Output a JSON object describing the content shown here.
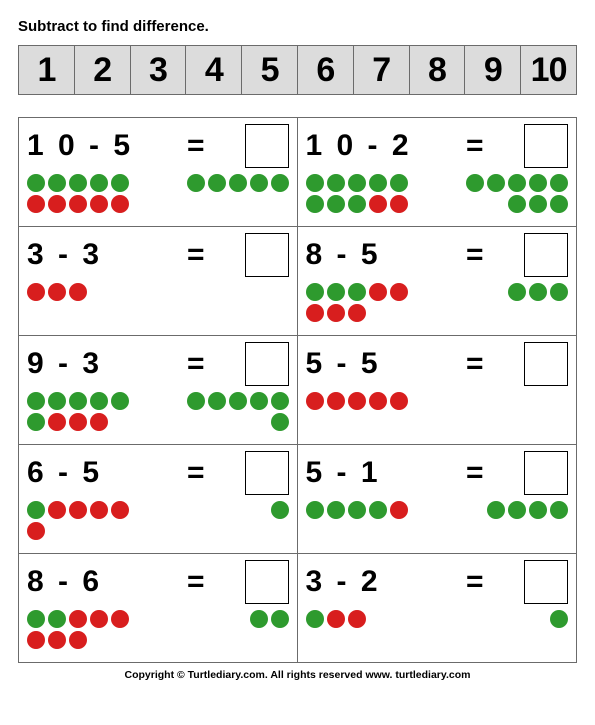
{
  "instruction": "Subtract to find difference.",
  "number_strip": [
    "1",
    "2",
    "3",
    "4",
    "5",
    "6",
    "7",
    "8",
    "9",
    "10"
  ],
  "colors": {
    "green": "#2e9a2e",
    "red": "#d81e1e"
  },
  "problems": [
    {
      "expr": "1 0 - 5",
      "equals": "=",
      "left_dots": [
        [
          "g",
          "g",
          "g",
          "g",
          "g"
        ],
        [
          "r",
          "r",
          "r",
          "r",
          "r"
        ]
      ],
      "right_dots": [
        [
          "g",
          "g",
          "g",
          "g",
          "g"
        ]
      ]
    },
    {
      "expr": "1 0 - 2",
      "equals": "=",
      "left_dots": [
        [
          "g",
          "g",
          "g",
          "g",
          "g"
        ],
        [
          "g",
          "g",
          "g",
          "r",
          "r"
        ]
      ],
      "right_dots": [
        [
          "g",
          "g",
          "g",
          "g",
          "g"
        ],
        [
          "g",
          "g",
          "g"
        ]
      ]
    },
    {
      "expr": "3 - 3",
      "equals": "=",
      "left_dots": [
        [
          "r",
          "r",
          "r"
        ]
      ],
      "right_dots": []
    },
    {
      "expr": "8 - 5",
      "equals": "=",
      "left_dots": [
        [
          "g",
          "g",
          "g",
          "r",
          "r"
        ],
        [
          "r",
          "r",
          "r"
        ]
      ],
      "right_dots": [
        [
          "g",
          "g",
          "g"
        ]
      ]
    },
    {
      "expr": "9 - 3",
      "equals": "=",
      "left_dots": [
        [
          "g",
          "g",
          "g",
          "g",
          "g"
        ],
        [
          "g",
          "r",
          "r",
          "r"
        ]
      ],
      "right_dots": [
        [
          "g",
          "g",
          "g",
          "g",
          "g"
        ],
        [
          "g"
        ]
      ]
    },
    {
      "expr": "5 - 5",
      "equals": "=",
      "left_dots": [
        [
          "r",
          "r",
          "r",
          "r",
          "r"
        ]
      ],
      "right_dots": []
    },
    {
      "expr": "6 - 5",
      "equals": "=",
      "left_dots": [
        [
          "g",
          "r",
          "r",
          "r",
          "r"
        ],
        [
          "r"
        ]
      ],
      "right_dots": [
        [
          "g"
        ]
      ]
    },
    {
      "expr": "5 - 1",
      "equals": "=",
      "left_dots": [
        [
          "g",
          "g",
          "g",
          "g",
          "r"
        ]
      ],
      "right_dots": [
        [
          "g",
          "g",
          "g",
          "g"
        ]
      ]
    },
    {
      "expr": "8 - 6",
      "equals": "=",
      "left_dots": [
        [
          "g",
          "g",
          "r",
          "r",
          "r"
        ],
        [
          "r",
          "r",
          "r"
        ]
      ],
      "right_dots": [
        [
          "g",
          "g"
        ]
      ]
    },
    {
      "expr": "3 - 2",
      "equals": "=",
      "left_dots": [
        [
          "g",
          "r",
          "r"
        ]
      ],
      "right_dots": [
        [
          "g"
        ]
      ]
    }
  ],
  "footer": "Copyright © Turtlediary.com. All rights reserved   www. turtlediary.com"
}
